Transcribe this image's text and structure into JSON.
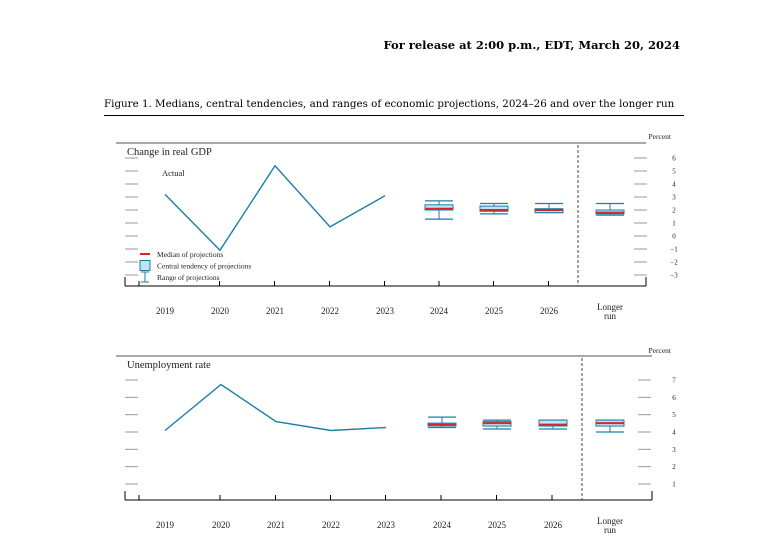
{
  "header": {
    "release": "For release at 2:00 p.m., EDT, March 20, 2024",
    "figure_title": "Figure 1. Medians, central tendencies, and ranges of economic projections, 2024–26 and over the longer run"
  },
  "colors": {
    "line": "#1a7fa6",
    "median": "#d0282e",
    "central_fill": "#bfe3f3",
    "central_stroke": "#1a7fa6",
    "range": "#1a7fa6"
  },
  "chart_data": [
    {
      "type": "line",
      "title": "Change in real GDP",
      "unit_label": "Percent",
      "annotation": "Actual",
      "categories": [
        "2019",
        "2020",
        "2021",
        "2022",
        "2023",
        "2024",
        "2025",
        "2026",
        "Longer run"
      ],
      "ylim": [
        -3,
        6
      ],
      "yticks": [
        "6",
        "5",
        "4",
        "3",
        "2",
        "1",
        "0",
        "−1",
        "−2",
        "−3"
      ],
      "actual": {
        "x": [
          "2019",
          "2020",
          "2021",
          "2022",
          "2023"
        ],
        "values": [
          3.2,
          -1.1,
          5.4,
          0.7,
          3.1
        ]
      },
      "projections": [
        {
          "x": "2024",
          "median": 2.1,
          "central": [
            2.0,
            2.4
          ],
          "range": [
            1.3,
            2.7
          ]
        },
        {
          "x": "2025",
          "median": 2.0,
          "central": [
            1.9,
            2.3
          ],
          "range": [
            1.7,
            2.5
          ]
        },
        {
          "x": "2026",
          "median": 2.0,
          "central": [
            1.8,
            2.1
          ],
          "range": [
            1.8,
            2.5
          ]
        },
        {
          "x": "Longer run",
          "median": 1.8,
          "central": [
            1.7,
            2.0
          ],
          "range": [
            1.6,
            2.5
          ]
        }
      ],
      "legend": [
        {
          "kind": "median",
          "label": "Median of projections"
        },
        {
          "kind": "central",
          "label": "Central tendency of projections"
        },
        {
          "kind": "range",
          "label": "Range of projections"
        }
      ],
      "legend_position": "bottom-left"
    },
    {
      "type": "line",
      "title": "Unemployment rate",
      "unit_label": "Percent",
      "categories": [
        "2019",
        "2020",
        "2021",
        "2022",
        "2023",
        "2024",
        "2025",
        "2026",
        "Longer run"
      ],
      "ylim": [
        0,
        7
      ],
      "yticks": [
        "7",
        "6",
        "5",
        "4",
        "3",
        "2",
        "1"
      ],
      "actual": {
        "x": [
          "2019",
          "2020",
          "2021",
          "2022",
          "2023"
        ],
        "values": [
          3.6,
          6.7,
          4.2,
          3.6,
          3.8
        ]
      },
      "projections": [
        {
          "x": "2024",
          "median": 4.0,
          "central": [
            3.9,
            4.1
          ],
          "range": [
            3.8,
            4.5
          ]
        },
        {
          "x": "2025",
          "median": 4.1,
          "central": [
            3.9,
            4.2
          ],
          "range": [
            3.7,
            4.3
          ]
        },
        {
          "x": "2026",
          "median": 4.0,
          "central": [
            3.9,
            4.3
          ],
          "range": [
            3.7,
            4.3
          ]
        },
        {
          "x": "Longer run",
          "median": 4.1,
          "central": [
            3.9,
            4.3
          ],
          "range": [
            3.5,
            4.3
          ]
        }
      ]
    }
  ]
}
